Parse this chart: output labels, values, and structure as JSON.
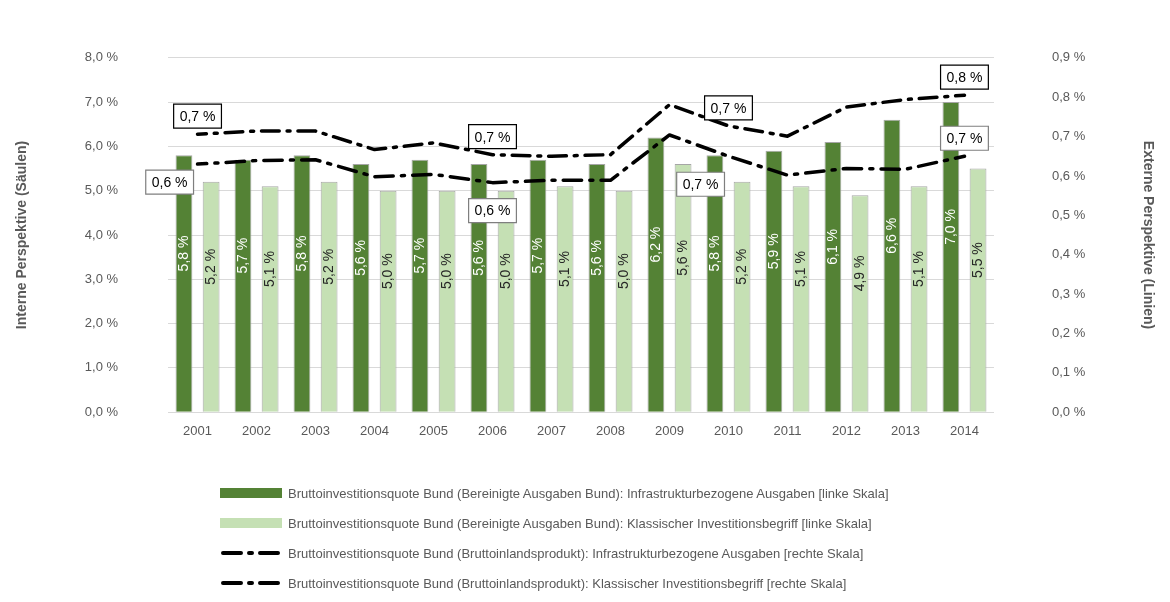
{
  "chart_data": {
    "type": "bar",
    "categories": [
      "2001",
      "2002",
      "2003",
      "2004",
      "2005",
      "2006",
      "2007",
      "2008",
      "2009",
      "2010",
      "2011",
      "2012",
      "2013",
      "2014"
    ],
    "ylabel": "Interne Perspektive (Säulen)",
    "y2label": "Externe Perspektive (Linien)",
    "ylim": [
      0,
      8
    ],
    "yticks": [
      {
        "value": 0,
        "label": "0,0 %"
      },
      {
        "value": 1,
        "label": "1,0 %"
      },
      {
        "value": 2,
        "label": "2,0 %"
      },
      {
        "value": 3,
        "label": "3,0 %"
      },
      {
        "value": 4,
        "label": "4,0 %"
      },
      {
        "value": 5,
        "label": "5,0 %"
      },
      {
        "value": 6,
        "label": "6,0 %"
      },
      {
        "value": 7,
        "label": "7,0 %"
      },
      {
        "value": 8,
        "label": "8,0 %"
      }
    ],
    "y2lim": [
      0,
      0.9
    ],
    "y2ticks": [
      {
        "value": 0,
        "label": "0,0 %"
      },
      {
        "value": 0.1,
        "label": "0,1 %"
      },
      {
        "value": 0.2,
        "label": "0,2 %"
      },
      {
        "value": 0.3,
        "label": "0,3 %"
      },
      {
        "value": 0.4,
        "label": "0,4 %"
      },
      {
        "value": 0.5,
        "label": "0,5 %"
      },
      {
        "value": 0.6,
        "label": "0,6 %"
      },
      {
        "value": 0.7,
        "label": "0,7 %"
      },
      {
        "value": 0.8,
        "label": "0,8 %"
      },
      {
        "value": 0.9,
        "label": "0,9 %"
      }
    ],
    "grid": "y",
    "legend": "bottom",
    "series": [
      {
        "name": "Bruttoinvestitionsquote Bund (Bereinigte Ausgaben Bund): Infrastrukturbezogene Ausgaben [linke Skala]",
        "color": "#548235",
        "values": [
          5.8,
          5.7,
          5.8,
          5.6,
          5.7,
          5.6,
          5.7,
          5.6,
          6.2,
          5.8,
          5.9,
          6.1,
          6.6,
          7.0
        ],
        "value_labels": [
          "5,8 %",
          "5,7 %",
          "5,8 %",
          "5,6 %",
          "5,7 %",
          "5,6 %",
          "5,7 %",
          "5,6 %",
          "6,2 %",
          "5,8 %",
          "5,9 %",
          "6,1 %",
          "6,6 %",
          "7,0 %"
        ]
      },
      {
        "name": "Bruttoinvestitionsquote Bund (Bereinigte Ausgaben Bund): Klassischer Investitionsbegriff [linke Skala]",
        "color": "#c5e0b4",
        "values": [
          5.2,
          5.1,
          5.2,
          5.0,
          5.0,
          5.0,
          5.1,
          5.0,
          5.6,
          5.2,
          5.1,
          4.9,
          5.1,
          5.5
        ],
        "value_labels": [
          "5,2 %",
          "5,1 %",
          "5,2 %",
          "5,0 %",
          "5,0 %",
          "5,0 %",
          "5,1 %",
          "5,0 %",
          "5,6 %",
          "5,2 %",
          "5,1 %",
          "4,9 %",
          "5,1 %",
          "5,5 %"
        ]
      },
      {
        "name": "Bruttoinvestitionsquote Bund (Bruttoinlandsprodukt): Infrastrukturbezogene Ausgaben [rechte Skala]",
        "type": "line",
        "axis": "y2",
        "color": "#000000",
        "line_style": "dashed",
        "marker": "none",
        "values": [
          0.706,
          0.714,
          0.714,
          0.667,
          0.684,
          0.654,
          0.65,
          0.654,
          0.781,
          0.727,
          0.701,
          0.775,
          0.794,
          0.805
        ],
        "value_labels": [
          "0,7 %",
          null,
          null,
          null,
          null,
          "0,7 %",
          null,
          null,
          null,
          "0,7 %",
          null,
          null,
          null,
          "0,8 %"
        ]
      },
      {
        "name": "Bruttoinvestitionsquote Bund (Bruttoinlandsprodukt): Klassischer Investitionsbegriff [rechte Skala]",
        "type": "line",
        "axis": "y2",
        "color": "#000000",
        "line_style": "dashed",
        "marker": "none",
        "values": [
          0.63,
          0.639,
          0.641,
          0.598,
          0.604,
          0.583,
          0.589,
          0.589,
          0.704,
          0.65,
          0.602,
          0.619,
          0.617,
          0.65
        ],
        "value_labels": [
          "0,6 %",
          null,
          null,
          null,
          null,
          "0,6 %",
          null,
          null,
          null,
          "0,7 %",
          null,
          null,
          null,
          "0,7 %"
        ]
      }
    ]
  }
}
